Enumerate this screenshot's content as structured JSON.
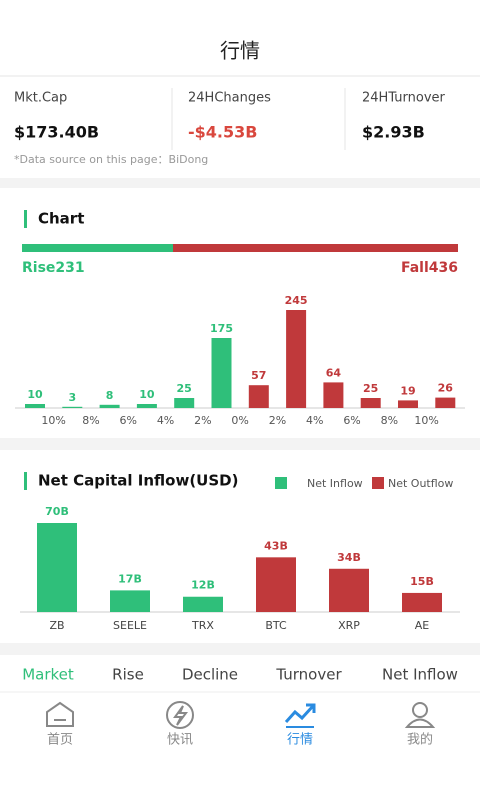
{
  "header": {
    "title": "行情"
  },
  "stats": [
    {
      "label": "Mkt.Cap",
      "value": "$173.40B"
    },
    {
      "label": "24HChanges",
      "value": "-$4.53B"
    },
    {
      "label": "24HTurnover",
      "value": "$2.93B"
    }
  ],
  "source_note": "*Data source on this page：BiDong",
  "chart_data": [
    {
      "type": "bar",
      "title": "Chart",
      "rise": {
        "value": 231,
        "label": "Rise231",
        "color": "#2fbf7a"
      },
      "fall": {
        "value": 436,
        "label": "Fall436",
        "color": "#c0393b"
      },
      "edges": [
        "10%",
        "8%",
        "6%",
        "4%",
        "2%",
        "0%",
        "2%",
        "4%",
        "6%",
        "8%",
        "10%"
      ],
      "values": [
        10,
        3,
        8,
        10,
        25,
        175,
        57,
        245,
        64,
        25,
        19,
        26
      ],
      "colors": [
        "#2fbf7a",
        "#2fbf7a",
        "#2fbf7a",
        "#2fbf7a",
        "#2fbf7a",
        "#2fbf7a",
        "#c0393b",
        "#c0393b",
        "#c0393b",
        "#c0393b",
        "#c0393b",
        "#c0393b"
      ]
    },
    {
      "type": "bar",
      "title": "Net Capital Inflow(USD)",
      "categories": [
        "ZB",
        "SEELE",
        "TRX",
        "BTC",
        "XRP",
        "AE"
      ],
      "series": [
        {
          "name": "Net Inflow",
          "color": "#2fbf7a",
          "values": [
            70,
            17,
            12,
            null,
            null,
            null
          ],
          "value_labels": [
            "70B",
            "17B",
            "12B",
            null,
            null,
            null
          ]
        },
        {
          "name": "Net Outflow",
          "color": "#c0393b",
          "values": [
            null,
            null,
            null,
            43,
            34,
            15
          ],
          "value_labels": [
            null,
            null,
            null,
            "43B",
            "34B",
            "15B"
          ]
        }
      ]
    }
  ],
  "tabs": {
    "items": [
      "Market",
      "Rise",
      "Decline",
      "Turnover",
      "Net Inflow"
    ],
    "active": 0
  },
  "nav": {
    "items": [
      "首页",
      "快讯",
      "行情",
      "我的"
    ],
    "active": 2
  }
}
